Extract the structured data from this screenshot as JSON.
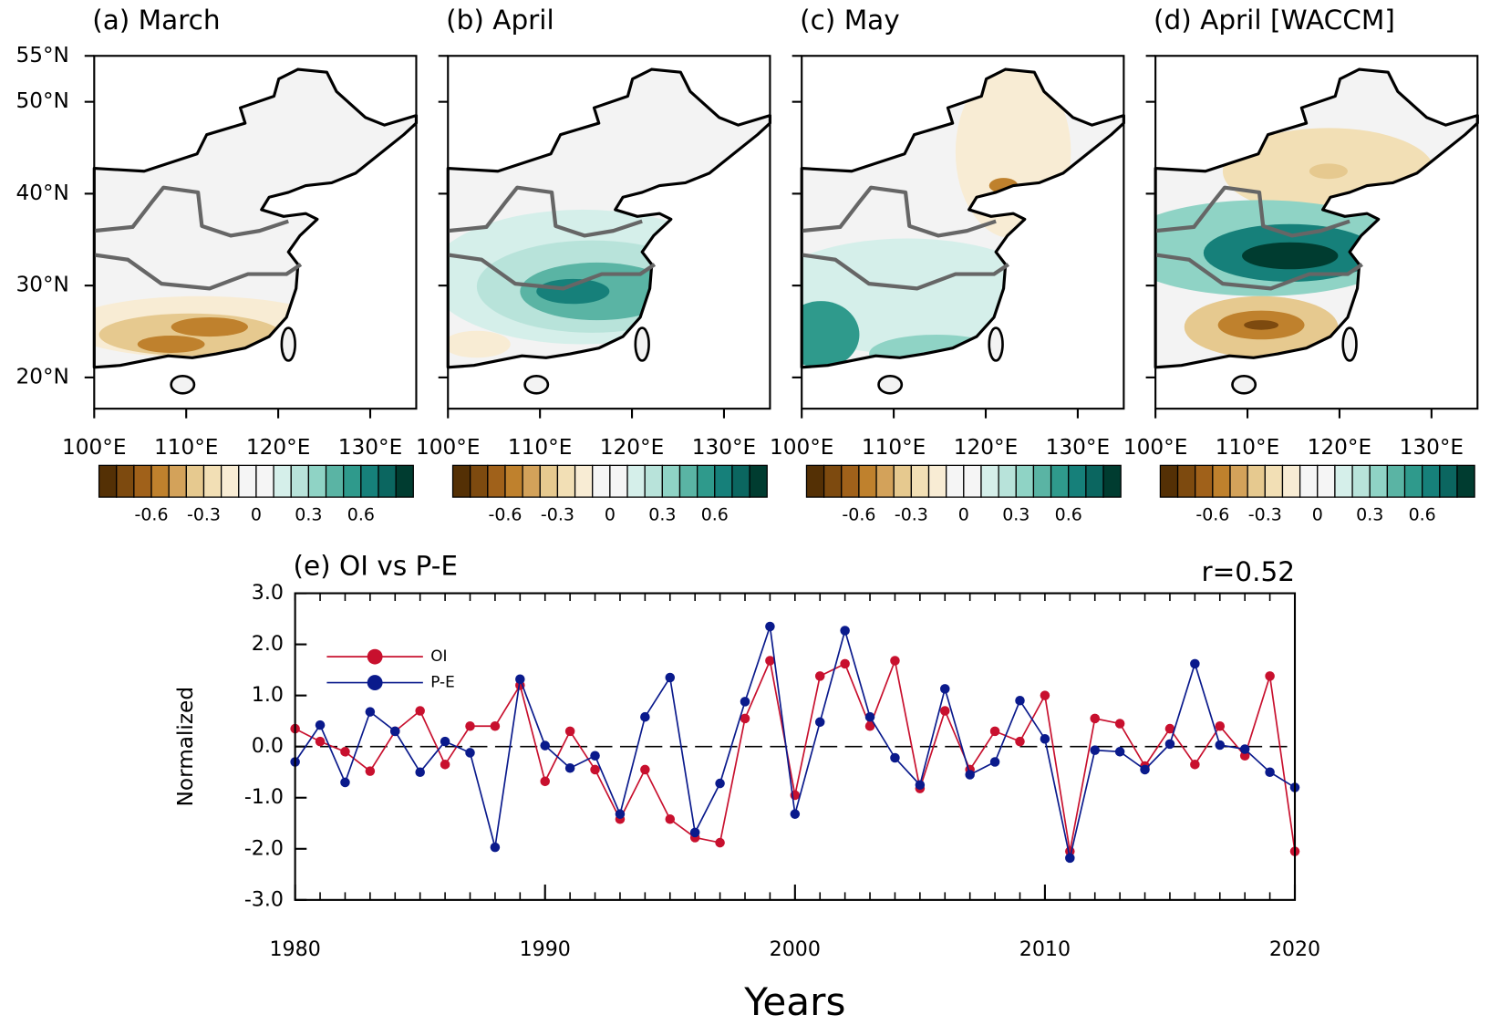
{
  "chart_data": [
    {
      "type": "map",
      "title": "(a) March",
      "xlim": [
        100,
        135
      ],
      "ylim": [
        16.6,
        55
      ],
      "xticks": [
        {
          "value": 100,
          "label": "100°E"
        },
        {
          "value": 110,
          "label": "110°E"
        },
        {
          "value": 120,
          "label": "120°E"
        },
        {
          "value": 130,
          "label": "130°E"
        }
      ],
      "yticks": [
        {
          "value": 55,
          "label": "55°N"
        },
        {
          "value": 50,
          "label": "50°N"
        },
        {
          "value": 40,
          "label": "40°N"
        },
        {
          "value": 30,
          "label": "30°N"
        },
        {
          "value": 20,
          "label": "20°N"
        }
      ],
      "colorbar": {
        "lim": [
          -0.9,
          0.9
        ],
        "ticks": [
          -0.6,
          -0.3,
          0,
          0.3,
          0.6
        ],
        "colors": [
          "#543005",
          "#7d4a0f",
          "#a0611a",
          "#bf812d",
          "#d3a25a",
          "#e6c98f",
          "#f2dfb5",
          "#f8ecd4",
          "#f5f5f5",
          "#f5f5f5",
          "#d5efea",
          "#b8e3da",
          "#8fd3c5",
          "#5ab4a4",
          "#2f9a8c",
          "#16807a",
          "#0b6660",
          "#003c30"
        ]
      }
    },
    {
      "type": "map",
      "title": "(b) April",
      "xlim": [
        100,
        135
      ],
      "ylim": [
        16.6,
        55
      ],
      "xticks": [
        {
          "value": 100,
          "label": "100°E"
        },
        {
          "value": 110,
          "label": "110°E"
        },
        {
          "value": 120,
          "label": "120°E"
        },
        {
          "value": 130,
          "label": "130°E"
        }
      ],
      "colorbar": {
        "lim": [
          -0.9,
          0.9
        ],
        "ticks": [
          -0.6,
          -0.3,
          0,
          0.3,
          0.6
        ],
        "colors": [
          "#543005",
          "#7d4a0f",
          "#a0611a",
          "#bf812d",
          "#d3a25a",
          "#e6c98f",
          "#f2dfb5",
          "#f8ecd4",
          "#f5f5f5",
          "#f5f5f5",
          "#d5efea",
          "#b8e3da",
          "#8fd3c5",
          "#5ab4a4",
          "#2f9a8c",
          "#16807a",
          "#0b6660",
          "#003c30"
        ]
      }
    },
    {
      "type": "map",
      "title": "(c) May",
      "xlim": [
        100,
        135
      ],
      "ylim": [
        16.6,
        55
      ],
      "xticks": [
        {
          "value": 100,
          "label": "100°E"
        },
        {
          "value": 110,
          "label": "110°E"
        },
        {
          "value": 120,
          "label": "120°E"
        },
        {
          "value": 130,
          "label": "130°E"
        }
      ],
      "colorbar": {
        "lim": [
          -0.9,
          0.9
        ],
        "ticks": [
          -0.6,
          -0.3,
          0,
          0.3,
          0.6
        ],
        "colors": [
          "#543005",
          "#7d4a0f",
          "#a0611a",
          "#bf812d",
          "#d3a25a",
          "#e6c98f",
          "#f2dfb5",
          "#f8ecd4",
          "#f5f5f5",
          "#f5f5f5",
          "#d5efea",
          "#b8e3da",
          "#8fd3c5",
          "#5ab4a4",
          "#2f9a8c",
          "#16807a",
          "#0b6660",
          "#003c30"
        ]
      }
    },
    {
      "type": "map",
      "title": "(d) April [WACCM]",
      "xlim": [
        100,
        135
      ],
      "ylim": [
        16.6,
        55
      ],
      "xticks": [
        {
          "value": 100,
          "label": "100°E"
        },
        {
          "value": 110,
          "label": "110°E"
        },
        {
          "value": 120,
          "label": "120°E"
        },
        {
          "value": 130,
          "label": "130°E"
        }
      ],
      "colorbar": {
        "lim": [
          -0.9,
          0.9
        ],
        "ticks": [
          -0.6,
          -0.3,
          0,
          0.3,
          0.6
        ],
        "colors": [
          "#543005",
          "#7d4a0f",
          "#a0611a",
          "#bf812d",
          "#d3a25a",
          "#e6c98f",
          "#f2dfb5",
          "#f8ecd4",
          "#f5f5f5",
          "#f5f5f5",
          "#d5efea",
          "#b8e3da",
          "#8fd3c5",
          "#5ab4a4",
          "#2f9a8c",
          "#16807a",
          "#0b6660",
          "#003c30"
        ]
      }
    },
    {
      "type": "line",
      "title": "(e) OI vs P-E",
      "annotation": "r=0.52",
      "xlabel": "Years",
      "ylabel": "Normalized",
      "x": [
        1980,
        1981,
        1982,
        1983,
        1984,
        1985,
        1986,
        1987,
        1988,
        1989,
        1990,
        1991,
        1992,
        1993,
        1994,
        1995,
        1996,
        1997,
        1998,
        1999,
        2000,
        2001,
        2002,
        2003,
        2004,
        2005,
        2006,
        2007,
        2008,
        2009,
        2010,
        2011,
        2012,
        2013,
        2014,
        2015,
        2016,
        2017,
        2018,
        2019,
        2020
      ],
      "xlim": [
        1980,
        2020
      ],
      "xticks": [
        1980,
        1990,
        2000,
        2010,
        2020
      ],
      "ylim": [
        -3,
        3
      ],
      "yticks": [
        {
          "value": -3,
          "label": "-3.0"
        },
        {
          "value": -2,
          "label": "-2.0"
        },
        {
          "value": -1,
          "label": "-1.0"
        },
        {
          "value": 0,
          "label": "0.0"
        },
        {
          "value": 1,
          "label": "1.0"
        },
        {
          "value": 2,
          "label": "2.0"
        },
        {
          "value": 3,
          "label": "3.0"
        }
      ],
      "series": [
        {
          "name": "OI",
          "color": "#c8102e",
          "values": [
            0.35,
            0.1,
            -0.1,
            -0.48,
            0.3,
            0.7,
            -0.35,
            0.4,
            0.4,
            1.2,
            -0.68,
            0.3,
            -0.45,
            -1.42,
            -0.45,
            -1.42,
            -1.78,
            -1.88,
            0.55,
            1.68,
            -0.95,
            1.38,
            1.62,
            0.4,
            1.68,
            -0.82,
            0.7,
            -0.45,
            0.3,
            0.1,
            1.0,
            -2.05,
            0.55,
            0.45,
            -0.38,
            0.35,
            -0.35,
            0.4,
            -0.18,
            1.38,
            -2.05
          ]
        },
        {
          "name": "P-E",
          "color": "#0a1a8c",
          "values": [
            -0.3,
            0.42,
            -0.7,
            0.68,
            0.3,
            -0.5,
            0.1,
            -0.12,
            -1.97,
            1.32,
            0.02,
            -0.42,
            -0.18,
            -1.32,
            0.58,
            1.35,
            -1.68,
            -0.72,
            0.88,
            2.35,
            -1.32,
            0.48,
            2.27,
            0.58,
            -0.22,
            -0.75,
            1.13,
            -0.55,
            -0.3,
            0.9,
            0.15,
            -2.18,
            -0.07,
            -0.1,
            -0.45,
            0.05,
            1.62,
            0.03,
            -0.05,
            -0.5,
            -0.8
          ]
        }
      ]
    }
  ]
}
